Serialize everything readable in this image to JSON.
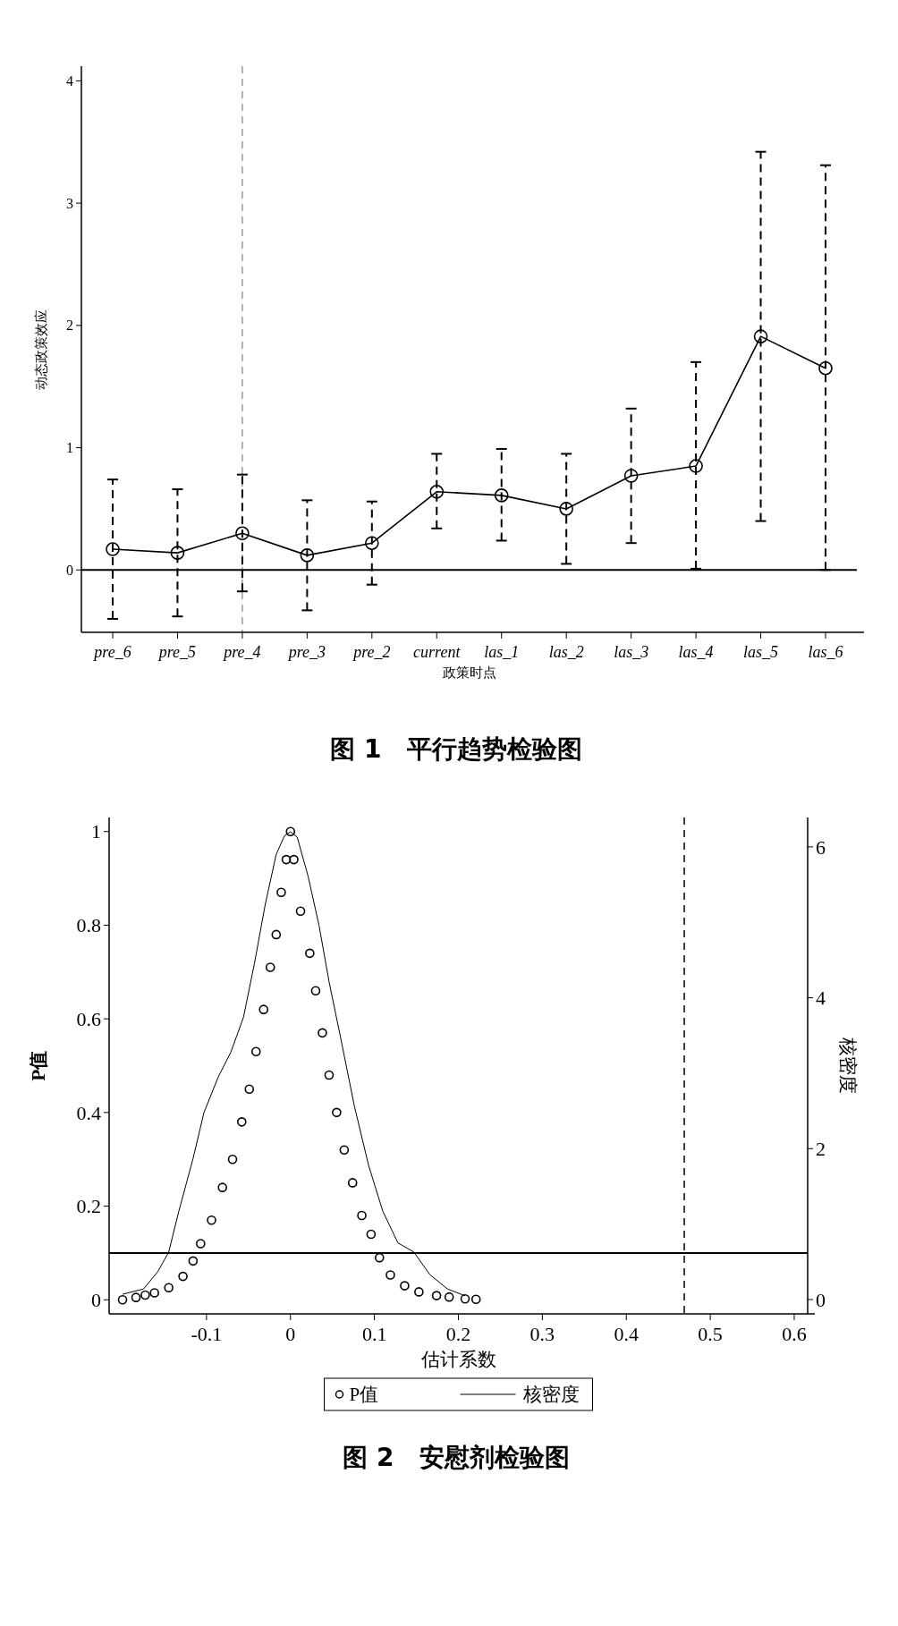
{
  "chart_data": [
    {
      "type": "line",
      "title": "图 1　平行趋势检验图",
      "xlabel": "政策时点",
      "ylabel": "动态政策效应",
      "categories": [
        "pre_6",
        "pre_5",
        "pre_4",
        "pre_3",
        "pre_2",
        "current",
        "las_1",
        "las_2",
        "las_3",
        "las_4",
        "las_5",
        "las_6"
      ],
      "series": [
        {
          "color": "#000000",
          "values": [
            0.17,
            0.14,
            0.3,
            0.12,
            0.22,
            0.64,
            0.61,
            0.5,
            0.77,
            0.85,
            1.91,
            1.65
          ],
          "errors": [
            [
              -0.4,
              0.74
            ],
            [
              -0.38,
              0.66
            ],
            [
              -0.175,
              0.78
            ],
            [
              -0.33,
              0.57
            ],
            [
              -0.12,
              0.56
            ],
            [
              0.34,
              0.95
            ],
            [
              0.24,
              0.99
            ],
            [
              0.05,
              0.95
            ],
            [
              0.22,
              1.32
            ],
            [
              0.01,
              1.7
            ],
            [
              0.4,
              3.42
            ],
            [
              0.0,
              3.31
            ]
          ]
        }
      ],
      "ylim": [
        -0.51,
        4.12
      ],
      "yticks": [
        0,
        1,
        2,
        3,
        4
      ],
      "marker": "circle",
      "line_style": "solid",
      "legend": false,
      "ref_lines": [
        {
          "axis": "x",
          "value": "pre_4",
          "color": "#999999",
          "line_style": "dashed"
        },
        {
          "axis": "y",
          "value": 0,
          "color": "#000000",
          "line_style": "solid"
        }
      ]
    },
    {
      "type": "scatter",
      "title": "图 2　安慰剂检验图",
      "xlabel": "估计系数",
      "ylabel": "P值",
      "y2label": "核密度",
      "series": [
        {
          "name": "P值",
          "type": "scatter",
          "color": "#000000",
          "marker": "circle",
          "x": [
            -0.2,
            -0.184,
            -0.173,
            -0.162,
            -0.145,
            -0.128,
            -0.116,
            -0.107,
            -0.094,
            -0.081,
            -0.069,
            -0.058,
            -0.049,
            -0.041,
            -0.032,
            -0.024,
            -0.017,
            -0.011,
            -0.005,
            0,
            0.004,
            0.012,
            0.023,
            0.03,
            0.038,
            0.046,
            0.055,
            0.064,
            0.074,
            0.085,
            0.096,
            0.106,
            0.119,
            0.136,
            0.153,
            0.174,
            0.189,
            0.208,
            0.221
          ],
          "values": [
            0.0,
            0.005,
            0.01,
            0.015,
            0.026,
            0.05,
            0.083,
            0.12,
            0.17,
            0.24,
            0.3,
            0.38,
            0.45,
            0.53,
            0.62,
            0.71,
            0.78,
            0.87,
            0.94,
            1.0,
            0.94,
            0.83,
            0.74,
            0.66,
            0.57,
            0.48,
            0.4,
            0.32,
            0.25,
            0.18,
            0.14,
            0.09,
            0.053,
            0.03,
            0.017,
            0.009,
            0.006,
            0.002,
            0.001
          ]
        },
        {
          "name": "核密度",
          "type": "line",
          "axis": "y2",
          "color": "#000000",
          "marker": "none",
          "line_style": "solid",
          "x": [
            -0.2,
            -0.175,
            -0.158,
            -0.145,
            -0.133,
            -0.116,
            -0.103,
            -0.086,
            -0.071,
            -0.056,
            -0.043,
            -0.03,
            -0.017,
            -0.007,
            0,
            0.008,
            0.021,
            0.034,
            0.046,
            0.059,
            0.076,
            0.093,
            0.11,
            0.128,
            0.147,
            0.166,
            0.187,
            0.208
          ],
          "values": [
            0.07,
            0.14,
            0.37,
            0.63,
            1.17,
            1.87,
            2.48,
            2.95,
            3.28,
            3.74,
            4.45,
            5.24,
            5.9,
            6.15,
            6.2,
            6.13,
            5.61,
            4.96,
            4.21,
            3.51,
            2.57,
            1.78,
            1.17,
            0.75,
            0.63,
            0.33,
            0.14,
            0.05
          ]
        }
      ],
      "xlim": [
        -0.216,
        0.616
      ],
      "xticks": [
        -0.1,
        0,
        0.1,
        0.2,
        0.3,
        0.4,
        0.5,
        0.6
      ],
      "ylim": [
        -0.03,
        1.03
      ],
      "yticks": [
        0,
        0.2,
        0.4,
        0.6,
        0.8,
        1
      ],
      "y2lim": [
        -0.19,
        6.39
      ],
      "y2ticks": [
        0,
        2,
        4,
        6
      ],
      "legend": "bottom",
      "ref_lines": [
        {
          "axis": "y",
          "value": 0.1,
          "color": "#000000",
          "line_style": "solid"
        },
        {
          "axis": "x",
          "value": 0.469,
          "color": "#000000",
          "line_style": "dashed"
        }
      ]
    }
  ]
}
